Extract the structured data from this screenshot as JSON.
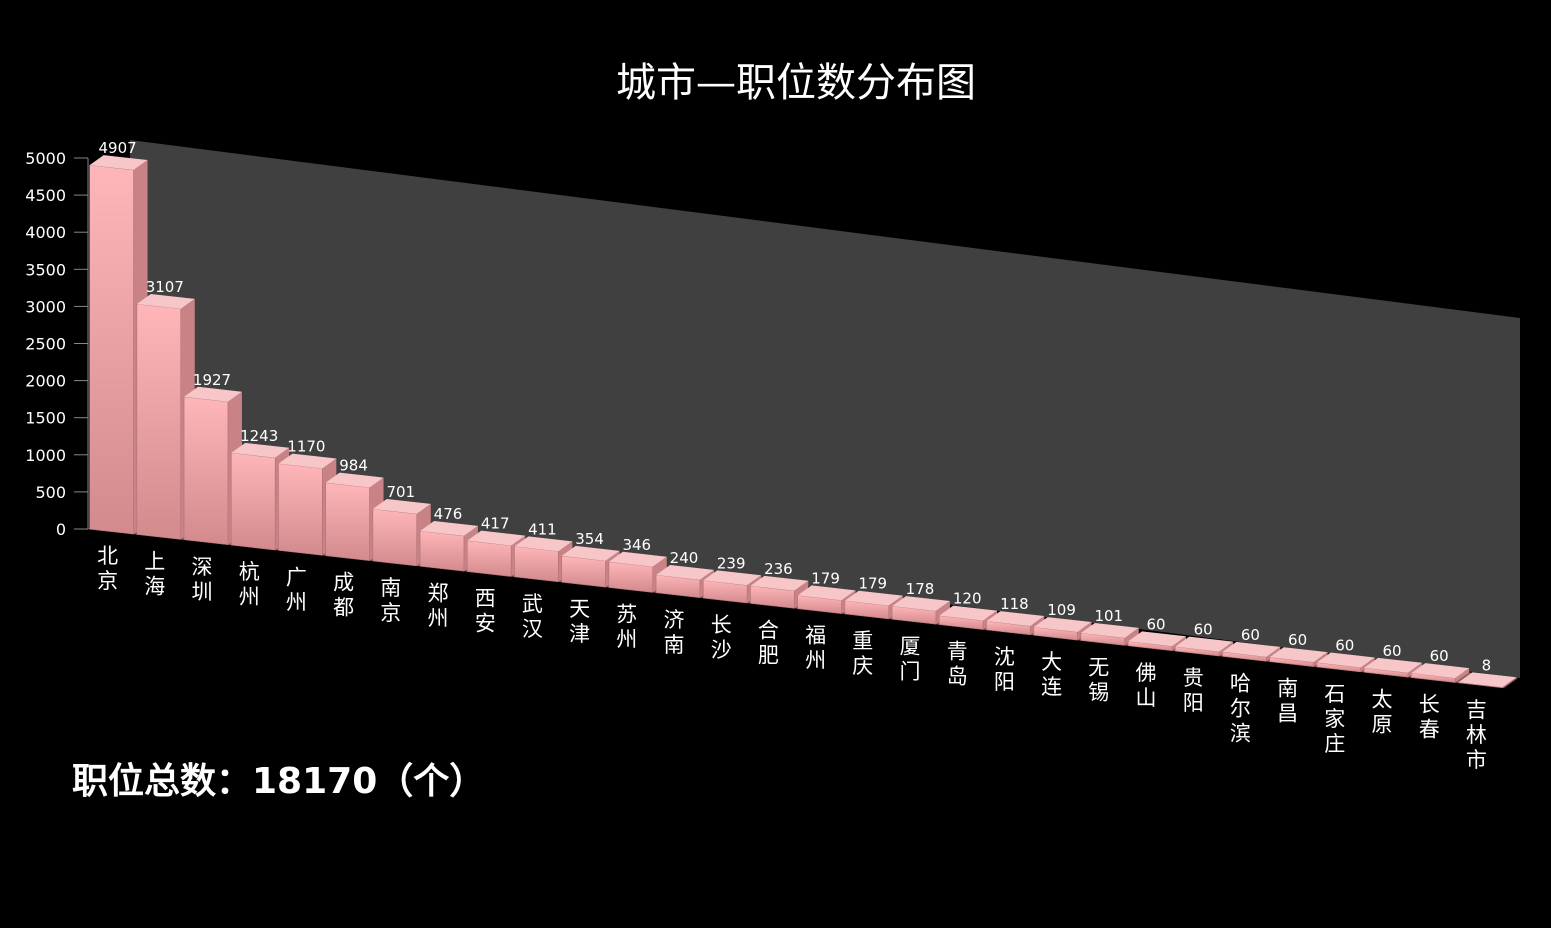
{
  "chart_data": {
    "type": "bar",
    "title": "城市—职位数分布图",
    "categories": [
      "北京",
      "上海",
      "深圳",
      "杭州",
      "广州",
      "成都",
      "南京",
      "郑州",
      "西安",
      "武汉",
      "天津",
      "苏州",
      "济南",
      "长沙",
      "合肥",
      "福州",
      "重庆",
      "厦门",
      "青岛",
      "沈阳",
      "大连",
      "无锡",
      "佛山",
      "贵阳",
      "哈尔滨",
      "南昌",
      "石家庄",
      "太原",
      "长春",
      "吉林市"
    ],
    "values": [
      4907,
      3107,
      1927,
      1243,
      1170,
      984,
      701,
      476,
      417,
      411,
      354,
      346,
      240,
      239,
      236,
      179,
      179,
      178,
      120,
      118,
      109,
      101,
      60,
      60,
      60,
      60,
      60,
      60,
      60,
      8
    ],
    "ylim": [
      0,
      5000
    ],
    "yticks": [
      0,
      500,
      1000,
      1500,
      2000,
      2500,
      3000,
      3500,
      4000,
      4500,
      5000
    ],
    "xlabel": "",
    "ylabel": "",
    "grid": false,
    "legend": "none"
  },
  "colors": {
    "background": "#000000",
    "back_wall": "#404040",
    "bar_front_top": "#ffb6b9",
    "bar_front_bottom": "#d38a8d",
    "bar_top_face": "#f6c6c8",
    "bar_side_face": "#c98285"
  },
  "summary": {
    "total_label": "职位总数：18170（个）"
  }
}
